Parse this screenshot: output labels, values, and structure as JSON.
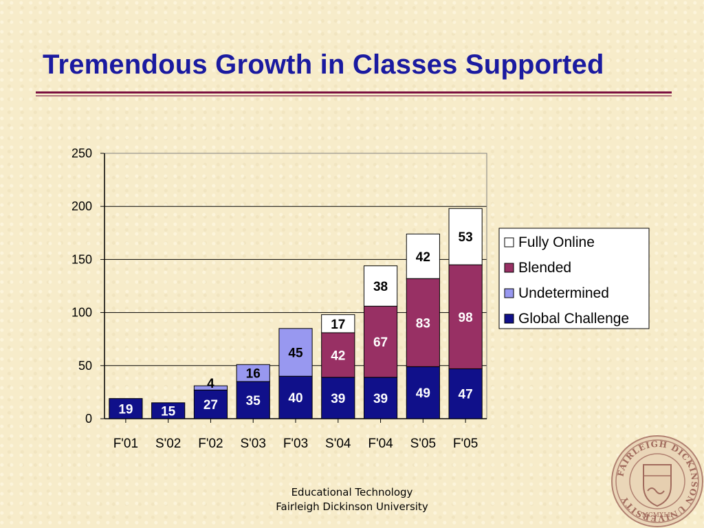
{
  "slide": {
    "title": "Tremendous Growth in Classes Supported",
    "footer_line1": "Educational Technology",
    "footer_line2": "Fairleigh Dickinson University"
  },
  "seal": {
    "text": "FAIRLEIGH DICKINSON UNIVERSITY",
    "year": "MCMXLII"
  },
  "colors": {
    "title": "#1a1aa0",
    "rule": "#7a1040",
    "background": "#f7ecca"
  },
  "chart_data": {
    "type": "bar",
    "stacked": true,
    "categories": [
      "F'01",
      "S'02",
      "F'02",
      "S'03",
      "F'03",
      "S'04",
      "F'04",
      "S'05",
      "F'05"
    ],
    "series": [
      {
        "name": "Global Challenge",
        "color": "#10108a",
        "label_color": "#ffffff",
        "values": [
          19,
          15,
          27,
          35,
          40,
          39,
          39,
          49,
          47
        ]
      },
      {
        "name": "Undetermined",
        "color": "#9898f0",
        "label_color": "#000000",
        "values": [
          0,
          0,
          4,
          16,
          45,
          0,
          0,
          0,
          0
        ]
      },
      {
        "name": "Blended",
        "color": "#983064",
        "label_color": "#ffffff",
        "values": [
          0,
          0,
          0,
          0,
          0,
          42,
          67,
          83,
          98
        ]
      },
      {
        "name": "Fully Online",
        "color": "#ffffff",
        "label_color": "#000000",
        "values": [
          0,
          0,
          0,
          0,
          0,
          17,
          38,
          42,
          53
        ]
      }
    ],
    "ylim": [
      0,
      250
    ],
    "yticks": [
      0,
      50,
      100,
      150,
      200,
      250
    ],
    "grid": true,
    "legend": "right",
    "title": "",
    "xlabel": "",
    "ylabel": ""
  }
}
